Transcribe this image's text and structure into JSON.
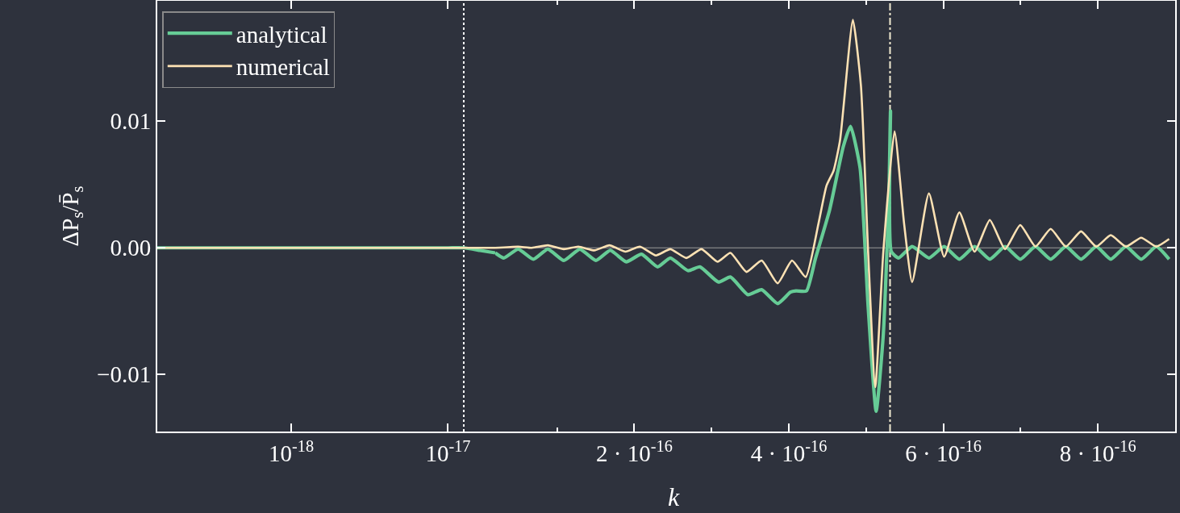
{
  "chart_data": [
    {
      "type": "line",
      "ylabel": "ΔP$_{s}$/P̄$_{s}$",
      "log": "x",
      "xlim": [
        1.4e-19,
        2e-17
      ],
      "xticks": [
        {
          "value": 1e-18,
          "label": "10$^{-18}$"
        },
        {
          "value": 1e-17,
          "label": "10$^{-17}$"
        }
      ],
      "ylim": [
        -0.0145,
        0.0195
      ],
      "yticks": [
        {
          "value": -0.01,
          "label": "−0.01"
        },
        {
          "value": 0,
          "label": "0.00"
        },
        {
          "value": 0.01,
          "label": "0.01"
        }
      ],
      "legend": "top left",
      "grid": false,
      "ref_lines": [
        {
          "axis": "x",
          "value": 1.26e-17,
          "color": "#ffffff",
          "line_style": "dotted"
        }
      ],
      "series": [
        {
          "name": "analytical",
          "color": "#66cc96",
          "x": [
            1.4e-19,
            1e-18,
            5e-18,
            1e-17,
            1.26e-17,
            1.6e-17,
            2e-17
          ],
          "values": [
            0,
            0,
            0,
            0,
            0,
            -0.0002,
            -0.0004
          ]
        },
        {
          "name": "numerical",
          "color": "#fde2b4",
          "x": [
            1.4e-19,
            1e-18,
            5e-18,
            1e-17,
            1.26e-17,
            1.6e-17,
            2e-17
          ],
          "values": [
            0,
            0,
            0,
            0,
            0,
            0,
            0
          ]
        }
      ]
    },
    {
      "type": "line",
      "xlabel": "k",
      "xlim": [
        2e-17,
        9e-16
      ],
      "xticks": [
        {
          "value": 2e-16,
          "label": "2 · 10$^{-16}$"
        },
        {
          "value": 4e-16,
          "label": "4 · 10$^{-16}$"
        },
        {
          "value": 6e-16,
          "label": "6 · 10$^{-16}$"
        },
        {
          "value": 8e-16,
          "label": "8 · 10$^{-16}$"
        }
      ],
      "ylim": [
        -0.0145,
        0.0195
      ],
      "yticks": [
        -0.01,
        0,
        0.01
      ],
      "tick_labels": "x",
      "grid": false,
      "ref_lines": [
        {
          "axis": "x",
          "value": 5.31e-16,
          "color": "#f0ead0",
          "line_style": "dashdot"
        },
        {
          "axis": "y",
          "value": 0,
          "color": "#9a9a9a",
          "line_style": "solid"
        }
      ],
      "series": [
        {
          "color": "#66cc96",
          "x": [
            2e-17,
            3.11e-17,
            4.97e-17,
            6.94e-17,
            8.81e-17,
            1.088e-16,
            1.295e-16,
            1.503e-16,
            1.689e-16,
            1.896e-16,
            2.093e-16,
            2.301e-16,
            2.466e-16,
            2.694e-16,
            2.85e-16,
            3.088e-16,
            3.244e-16,
            3.472e-16,
            3.648e-16,
            3.855e-16,
            4.021e-16,
            4.093e-16,
            4.228e-16,
            4.342e-16,
            4.528e-16,
            4.705e-16,
            4.798e-16,
            4.922e-16,
            5.026e-16,
            5.13e-16,
            5.223e-16,
            5.295e-16,
            5.316e-16,
            5.326e-16,
            5.42e-16,
            5.596e-16,
            5.813e-16,
            6.01e-16,
            6.207e-16,
            6.404e-16,
            6.601e-16,
            6.798e-16,
            6.995e-16,
            7.192e-16,
            7.389e-16,
            7.585e-16,
            7.782e-16,
            7.979e-16,
            8.166e-16,
            8.363e-16,
            8.56e-16,
            8.756e-16,
            8.922e-16
          ],
          "values": [
            -0.0004,
            -0.0008,
            -0.0001,
            -0.0009,
            -0.0001,
            -0.001,
            -0.0001,
            -0.001,
            -0.0002,
            -0.0011,
            -0.0005,
            -0.0015,
            -0.0008,
            -0.0018,
            -0.0015,
            -0.0027,
            -0.0023,
            -0.0037,
            -0.0033,
            -0.0044,
            -0.0035,
            -0.0034,
            -0.0034,
            -0.0009,
            0.003,
            0.008,
            0.0096,
            0.0063,
            -0.0046,
            -0.0129,
            -0.0068,
            0.0041,
            0.0108,
            -0.0003,
            -0.0008,
            0.0001,
            -0.0008,
            0.0001,
            -0.0009,
            0.0001,
            -0.0009,
            0.0001,
            -0.0009,
            0.0001,
            -0.0009,
            0.0001,
            -0.0009,
            0.0001,
            -0.0009,
            0.0001,
            -0.0009,
            0.0001,
            -0.0009
          ]
        },
        {
          "color": "#fde2b4",
          "x": [
            2e-17,
            4.97e-17,
            6.74e-17,
            8.81e-17,
            1.088e-16,
            1.275e-16,
            1.482e-16,
            1.679e-16,
            1.886e-16,
            2.073e-16,
            2.28e-16,
            2.466e-16,
            2.674e-16,
            2.87e-16,
            3.078e-16,
            3.244e-16,
            3.451e-16,
            3.648e-16,
            3.855e-16,
            4.041e-16,
            4.218e-16,
            4.383e-16,
            4.487e-16,
            4.58e-16,
            4.663e-16,
            4.829e-16,
            4.933e-16,
            5.026e-16,
            5.119e-16,
            5.223e-16,
            5.368e-16,
            5.492e-16,
            5.596e-16,
            5.813e-16,
            6.01e-16,
            6.207e-16,
            6.404e-16,
            6.601e-16,
            6.798e-16,
            6.995e-16,
            7.192e-16,
            7.389e-16,
            7.585e-16,
            7.782e-16,
            7.979e-16,
            8.166e-16,
            8.363e-16,
            8.56e-16,
            8.756e-16,
            8.922e-16
          ],
          "values": [
            0,
            0.0001,
            0,
            0.0002,
            -0.0001,
            0.0001,
            -0.0002,
            0.0002,
            -0.0003,
            0.0001,
            -0.0006,
            -0.0001,
            -0.0008,
            -0.0001,
            -0.0011,
            -0.0004,
            -0.0019,
            -0.001,
            -0.0028,
            -0.001,
            -0.0023,
            0.0019,
            0.0049,
            0.0061,
            0.0085,
            0.018,
            0.0128,
            -0.0003,
            -0.011,
            -0.0003,
            0.0092,
            0.0019,
            -0.0027,
            0.0043,
            -0.0007,
            0.0028,
            -0.0003,
            0.0022,
            -0.0001,
            0.0018,
            0.0001,
            0.0015,
            0.0001,
            0.0013,
            0.0001,
            0.001,
            0.0001,
            0.0008,
            0.0001,
            0.0007
          ]
        }
      ]
    }
  ]
}
